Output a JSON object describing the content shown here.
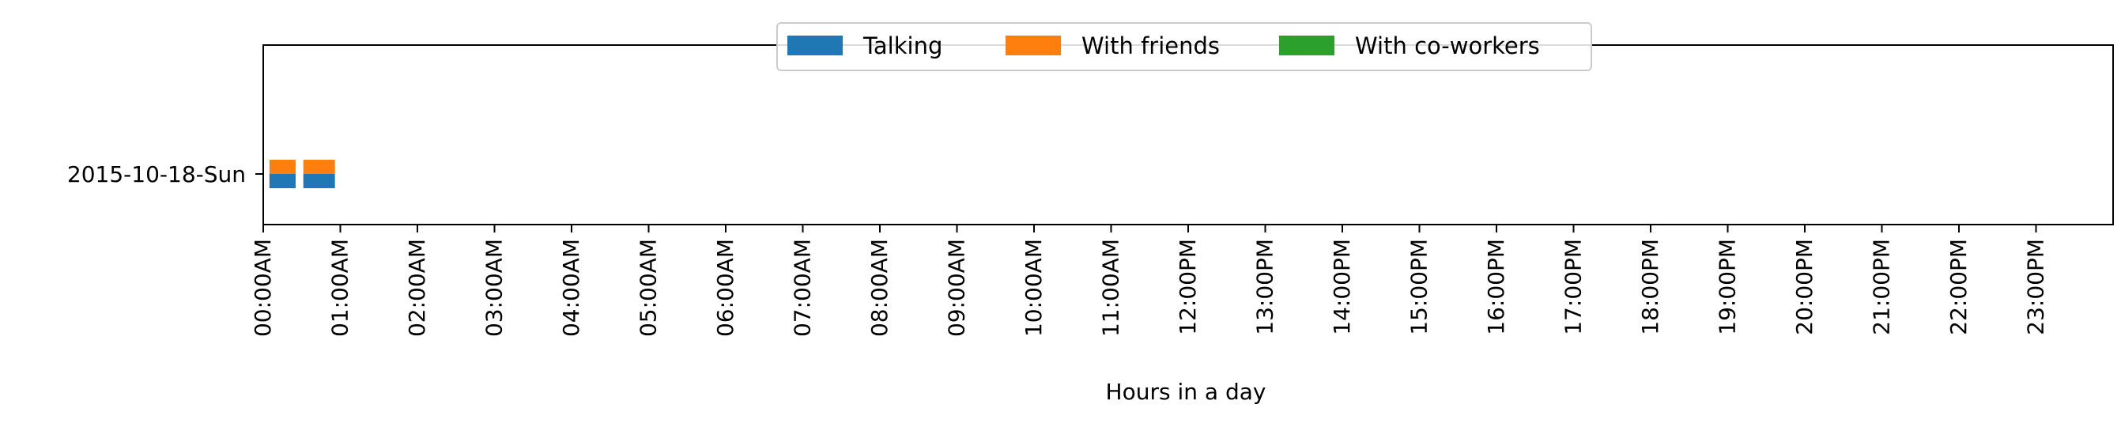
{
  "chart_data": {
    "type": "bar",
    "orientation": "horizontal-timeline",
    "title": "",
    "xlabel": "Hours in a day",
    "ylabel": "",
    "xlim": [
      0,
      24
    ],
    "x_tick_values": [
      0,
      1,
      2,
      3,
      4,
      5,
      6,
      7,
      8,
      9,
      10,
      11,
      12,
      13,
      14,
      15,
      16,
      17,
      18,
      19,
      20,
      21,
      22,
      23
    ],
    "x_tick_labels": [
      "00:00AM",
      "01:00AM",
      "02:00AM",
      "03:00AM",
      "04:00AM",
      "05:00AM",
      "06:00AM",
      "07:00AM",
      "08:00AM",
      "09:00AM",
      "10:00AM",
      "11:00AM",
      "12:00PM",
      "13:00PM",
      "14:00PM",
      "15:00PM",
      "16:00PM",
      "17:00PM",
      "18:00PM",
      "19:00PM",
      "20:00PM",
      "21:00PM",
      "22:00PM",
      "23:00PM"
    ],
    "categories": [
      "2015-10-18-Sun"
    ],
    "grid": false,
    "legend_position": "top-center",
    "series": [
      {
        "name": "Talking",
        "color": "#1f77b4",
        "segments": [
          {
            "category": "2015-10-18-Sun",
            "start": 0.08,
            "end": 0.42
          },
          {
            "category": "2015-10-18-Sun",
            "start": 0.52,
            "end": 0.93
          }
        ]
      },
      {
        "name": "With friends",
        "color": "#ff7f0e",
        "segments": [
          {
            "category": "2015-10-18-Sun",
            "start": 0.08,
            "end": 0.42
          },
          {
            "category": "2015-10-18-Sun",
            "start": 0.52,
            "end": 0.93
          }
        ]
      },
      {
        "name": "With co-workers",
        "color": "#2ca02c",
        "segments": []
      }
    ]
  }
}
